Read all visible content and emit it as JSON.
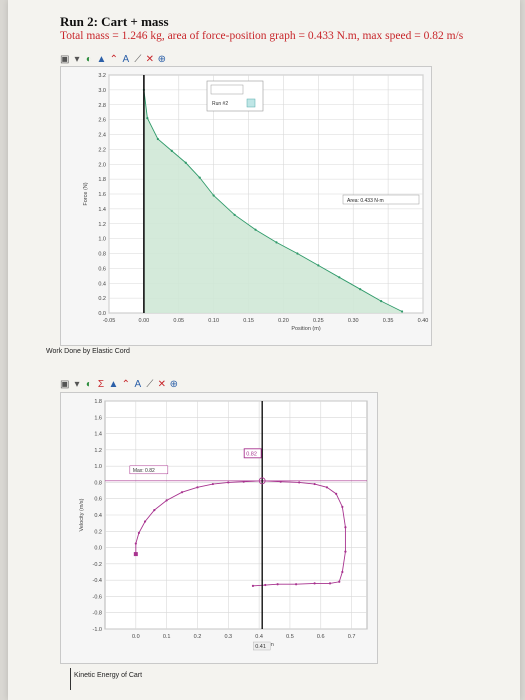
{
  "document": {
    "heading": "Run 2: Cart + mass",
    "subheading": "Total mass = 1.246 kg,  area of force-position graph = 0.433 N.m,  max speed = 0.82 m/s"
  },
  "toolbar": {
    "icons": [
      "graph-options-icon",
      "autoscale-icon",
      "statistics-icon",
      "area-icon",
      "curve-fit-icon",
      "text-annotation-icon",
      "delete-icon",
      "zoom-icon"
    ]
  },
  "force_graph": {
    "legend_label": "Run #2",
    "area_annotation": "Area: 0.433 N·m",
    "caption": "Work Done by Elastic Cord"
  },
  "velocity_graph": {
    "max_label": "Max: 0.82",
    "readout_box": "0.82",
    "x_readout": "0.41",
    "caption": "Kinetic Energy of Cart"
  },
  "colors": {
    "force_fill": "#cfe8d6",
    "force_line": "#2f9a6a",
    "velocity_line": "#a8338f",
    "grid": "#d8d8d8"
  },
  "chart_data": [
    {
      "type": "area",
      "xlabel": "Position (m)",
      "ylabel": "Force (N)",
      "xlim": [
        -0.05,
        0.4
      ],
      "ylim": [
        0.0,
        3.2
      ],
      "xticks": [
        "-0.05",
        "0.00",
        "0.05",
        "0.10",
        "0.15",
        "0.20",
        "0.25",
        "0.30",
        "0.35",
        "0.40"
      ],
      "yticks": [
        "0.0",
        "0.2",
        "0.4",
        "0.6",
        "0.8",
        "1.0",
        "1.2",
        "1.4",
        "1.6",
        "1.8",
        "2.0",
        "2.2",
        "2.4",
        "2.6",
        "2.8",
        "3.0",
        "3.2"
      ],
      "grid": true,
      "series": [
        {
          "name": "Run #2",
          "x": [
            0.0,
            0.005,
            0.02,
            0.04,
            0.06,
            0.08,
            0.1,
            0.13,
            0.16,
            0.19,
            0.22,
            0.25,
            0.28,
            0.31,
            0.34,
            0.37
          ],
          "y": [
            3.0,
            2.62,
            2.34,
            2.18,
            2.02,
            1.82,
            1.58,
            1.32,
            1.12,
            0.95,
            0.8,
            0.64,
            0.48,
            0.32,
            0.16,
            0.02
          ]
        }
      ],
      "vertical_marker_x": 0.0,
      "annotation": "Area: 0.433 N·m"
    },
    {
      "type": "line",
      "xlabel": "Position",
      "ylabel": "Velocity (m/s)",
      "xlim": [
        -0.1,
        0.75
      ],
      "ylim": [
        -1.0,
        1.8
      ],
      "xticks": [
        "0.0",
        "0.1",
        "0.2",
        "0.3",
        "0.4",
        "0.5",
        "0.6",
        "0.7"
      ],
      "yticks": [
        "-1.0",
        "-0.8",
        "-0.6",
        "-0.4",
        "-0.2",
        "0.0",
        "0.2",
        "0.4",
        "0.6",
        "0.8",
        "1.0",
        "1.2",
        "1.4",
        "1.6",
        "1.8"
      ],
      "grid": true,
      "series": [
        {
          "name": "Run #2",
          "x": [
            0.0,
            0.0,
            0.01,
            0.03,
            0.06,
            0.1,
            0.15,
            0.2,
            0.25,
            0.3,
            0.35,
            0.41,
            0.47,
            0.53,
            0.58,
            0.62,
            0.65,
            0.67,
            0.68,
            0.68,
            0.67,
            0.66,
            0.63,
            0.58,
            0.52,
            0.46,
            0.42,
            0.38
          ],
          "y": [
            -0.08,
            0.05,
            0.18,
            0.32,
            0.46,
            0.58,
            0.68,
            0.74,
            0.78,
            0.8,
            0.81,
            0.82,
            0.81,
            0.8,
            0.78,
            0.74,
            0.66,
            0.5,
            0.25,
            -0.05,
            -0.3,
            -0.42,
            -0.44,
            -0.44,
            -0.45,
            -0.45,
            -0.46,
            -0.47
          ]
        }
      ],
      "vertical_marker_x": 0.41,
      "max_value": 0.82
    }
  ]
}
